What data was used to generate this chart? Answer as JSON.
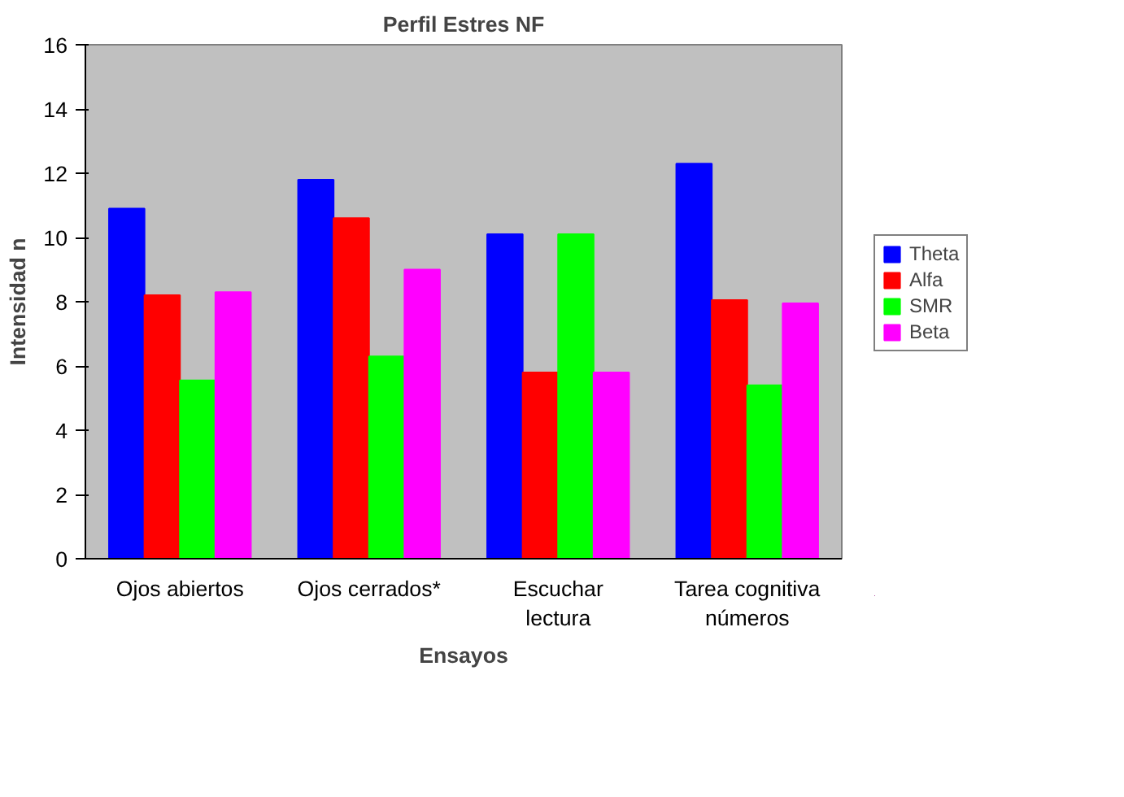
{
  "chart_data": {
    "type": "bar",
    "title": "Perfil Estres NF",
    "xlabel": "Ensayos",
    "ylabel": "Intensidad n",
    "categories": [
      "Ojos abiertos",
      "Ojos cerrados*",
      "Escuchar lectura",
      "Tarea cognitiva números"
    ],
    "series": [
      {
        "name": "Theta",
        "color": "#0000ff",
        "values": [
          10.9,
          11.8,
          10.1,
          12.3
        ]
      },
      {
        "name": "Alfa",
        "color": "#ff0000",
        "values": [
          8.2,
          10.6,
          5.8,
          8.05
        ]
      },
      {
        "name": "SMR",
        "color": "#00ff00",
        "values": [
          5.55,
          6.3,
          10.1,
          5.4
        ]
      },
      {
        "name": "Beta",
        "color": "#ff00ff",
        "values": [
          8.3,
          9.0,
          5.8,
          7.95
        ]
      }
    ],
    "ylim": [
      0,
      16
    ],
    "yticks": [
      0,
      2,
      4,
      6,
      8,
      10,
      12,
      14,
      16
    ],
    "grid": false,
    "legend": "right"
  }
}
